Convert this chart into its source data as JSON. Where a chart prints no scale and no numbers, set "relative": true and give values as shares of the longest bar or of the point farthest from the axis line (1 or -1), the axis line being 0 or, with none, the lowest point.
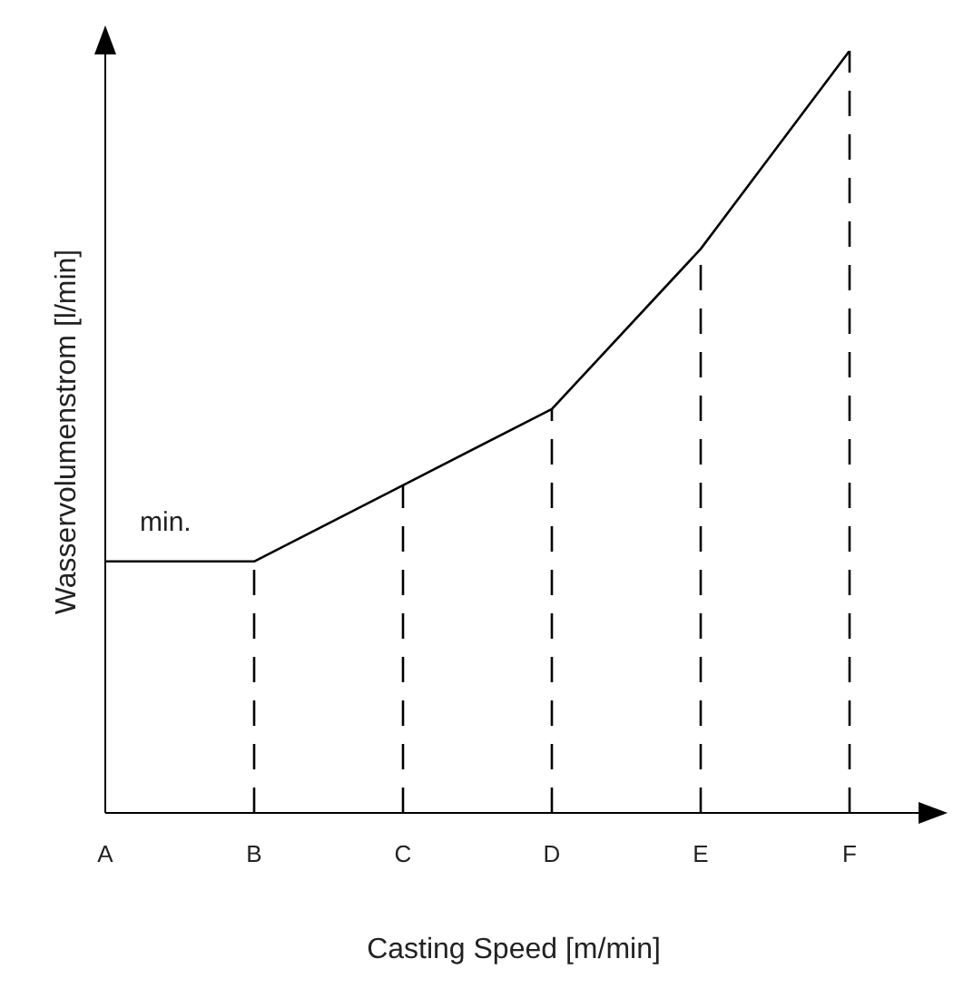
{
  "chart_data": {
    "type": "line",
    "relative": true,
    "xlabel": "Casting Speed [m/min]",
    "ylabel": "Wasservolumenstrom [l/min]",
    "categories": [
      "A",
      "B",
      "C",
      "D",
      "E",
      "F"
    ],
    "series": [
      {
        "color": "#000000",
        "values": [
          0.33,
          0.33,
          0.43,
          0.53,
          0.74,
          1
        ]
      }
    ],
    "ref_lines": [
      {
        "axis": "x",
        "value": "B",
        "line_style": "dashed",
        "color": "#000000"
      },
      {
        "axis": "x",
        "value": "C",
        "line_style": "dashed",
        "color": "#000000"
      },
      {
        "axis": "x",
        "value": "D",
        "line_style": "dashed",
        "color": "#000000"
      },
      {
        "axis": "x",
        "value": "E",
        "line_style": "dashed",
        "color": "#000000"
      },
      {
        "axis": "x",
        "value": "F",
        "line_style": "dashed",
        "color": "#000000"
      }
    ],
    "annotations": [
      {
        "text": "min.",
        "x": "A",
        "y": 0.33
      }
    ],
    "marker": "none",
    "line_style": "solid",
    "grid": false,
    "legend": false
  }
}
